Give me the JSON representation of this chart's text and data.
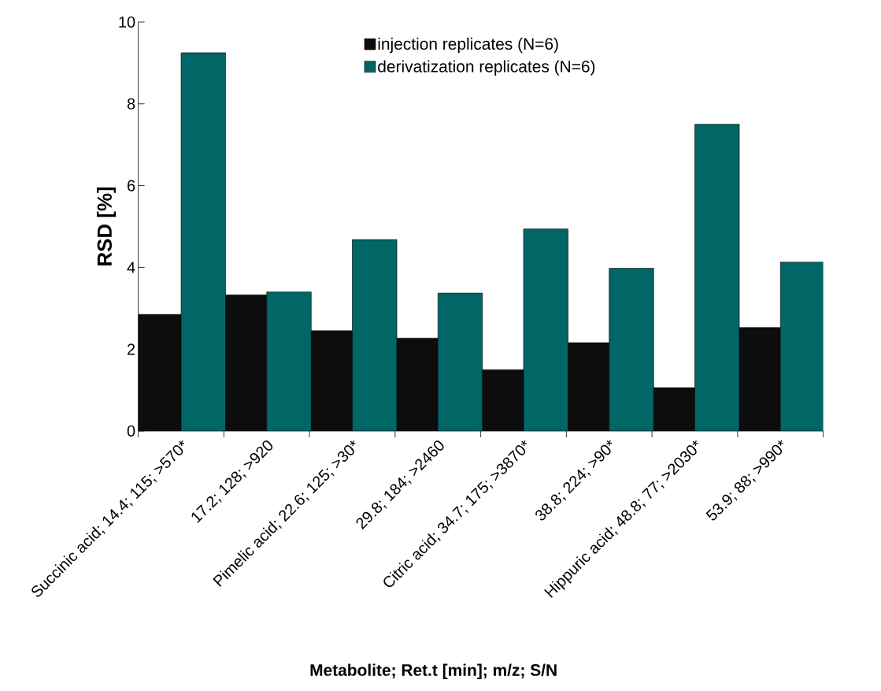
{
  "chart_data": {
    "type": "bar",
    "xlabel": "Metabolite; Ret.t [min]; m/z; S/N",
    "ylabel": "RSD [%]",
    "categories": [
      "Succinic acid; 14.4; 115; >570*",
      "17.2; 128; >920",
      "Pimelic acid; 22.6; 125; >30*",
      "29.8; 184; >2460",
      "Citric acid; 34.7; 175; >3870*",
      "38.8; 224; >90*",
      "Hippuric acid; 48.8; 77; >2030*",
      "53.9; 88; >990*"
    ],
    "series": [
      {
        "name": "injection replicates (N=6)",
        "color": "#0d0d0d",
        "values": [
          2.85,
          3.33,
          2.45,
          2.27,
          1.5,
          2.16,
          1.06,
          2.53
        ]
      },
      {
        "name": "derivatization replicates (N=6)",
        "color": "#006666",
        "values": [
          9.25,
          3.4,
          4.68,
          3.37,
          4.94,
          3.98,
          7.5,
          4.13
        ]
      }
    ],
    "ylim": [
      0,
      10
    ],
    "yticks": [
      0,
      2,
      4,
      6,
      8,
      10
    ],
    "legend": "top",
    "grid": false
  }
}
